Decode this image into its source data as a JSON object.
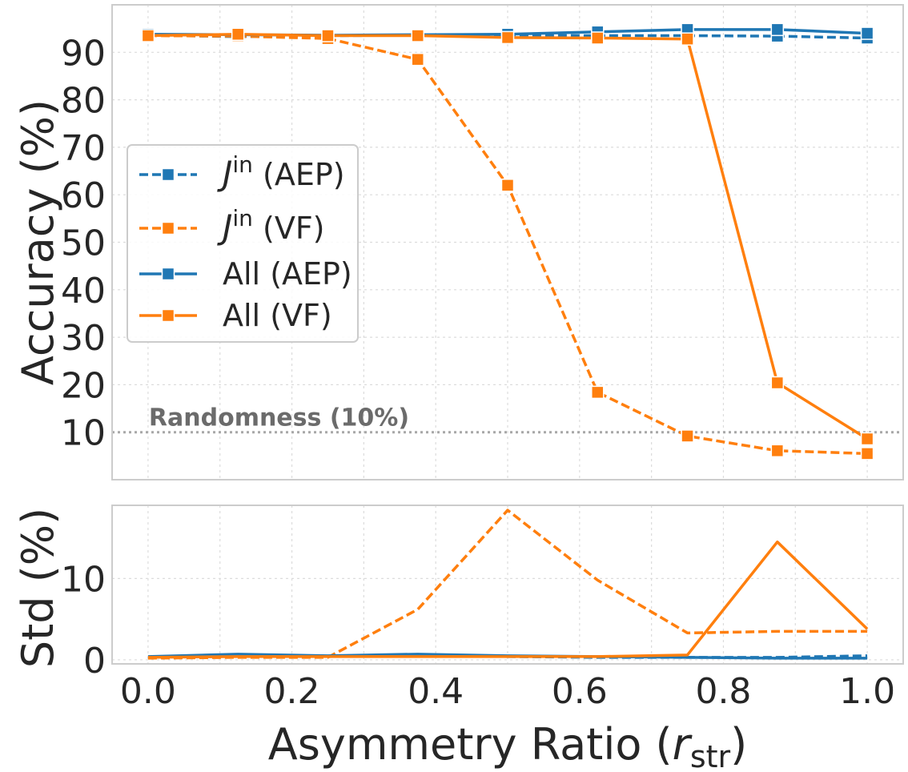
{
  "chart_data": [
    {
      "panel": "top",
      "type": "line",
      "x": [
        0.0,
        0.125,
        0.25,
        0.375,
        0.5,
        0.625,
        0.75,
        0.875,
        1.0
      ],
      "ylabel": "Accuracy (%)",
      "ylim": [
        0,
        100
      ],
      "yticks": [
        10,
        20,
        30,
        40,
        50,
        60,
        70,
        80,
        90
      ],
      "ytick_labels": [
        "10",
        "20",
        "30",
        "40",
        "50",
        "60",
        "70",
        "80",
        "90"
      ],
      "grid": true,
      "legend_placement": "center-left",
      "series": [
        {
          "name_main": "J",
          "name_sup": "in",
          "name_suffix": " (AEP)",
          "color": "#1f77b4",
          "style": "dashed",
          "marker": "square",
          "values": [
            93.6,
            93.3,
            93.5,
            93.6,
            93.6,
            93.5,
            93.5,
            93.4,
            93.0
          ]
        },
        {
          "name_main": "J",
          "name_sup": "in",
          "name_suffix": " (VF)",
          "color": "#ff7f0e",
          "style": "dashed",
          "marker": "square",
          "values": [
            93.5,
            93.4,
            92.9,
            88.5,
            62.0,
            18.4,
            9.2,
            6.1,
            5.5
          ]
        },
        {
          "name_main": "All (AEP)",
          "name_sup": "",
          "name_suffix": "",
          "color": "#1f77b4",
          "style": "solid",
          "marker": "square",
          "values": [
            93.8,
            93.7,
            93.6,
            93.7,
            93.8,
            94.3,
            94.8,
            94.8,
            94.0
          ]
        },
        {
          "name_main": "All (VF)",
          "name_sup": "",
          "name_suffix": "",
          "color": "#ff7f0e",
          "style": "solid",
          "marker": "square",
          "values": [
            93.5,
            93.8,
            93.5,
            93.5,
            93.1,
            93.0,
            92.8,
            20.4,
            8.6
          ]
        }
      ],
      "reference_line": {
        "y": 10,
        "label": "Randomness (10%)",
        "color": "#a8a8a8"
      }
    },
    {
      "panel": "bottom",
      "type": "line",
      "x": [
        0.0,
        0.125,
        0.25,
        0.375,
        0.5,
        0.625,
        0.75,
        0.875,
        1.0
      ],
      "ylabel": "Std (%)",
      "ylim": [
        -0.5,
        19
      ],
      "yticks": [
        0,
        10
      ],
      "ytick_labels": [
        "0",
        "10"
      ],
      "xlabel_main": "Asymmetry Ratio (",
      "xlabel_var": "r",
      "xlabel_sub": "str",
      "xlabel_close": ")",
      "xlim": [
        -0.05,
        1.05
      ],
      "xticks": [
        0.0,
        0.2,
        0.4,
        0.6,
        0.8,
        1.0
      ],
      "xtick_labels": [
        "0.0",
        "0.2",
        "0.4",
        "0.6",
        "0.8",
        "1.0"
      ],
      "grid": true,
      "series": [
        {
          "name": "J^in (AEP)",
          "color": "#1f77b4",
          "style": "dashed",
          "values": [
            0.3,
            0.5,
            0.4,
            0.6,
            0.4,
            0.3,
            0.3,
            0.3,
            0.5
          ]
        },
        {
          "name": "J^in (VF)",
          "color": "#ff7f0e",
          "style": "dashed",
          "values": [
            0.2,
            0.3,
            0.3,
            6.2,
            18.4,
            9.8,
            3.3,
            3.5,
            3.5
          ]
        },
        {
          "name": "All (AEP)",
          "color": "#1f77b4",
          "style": "solid",
          "values": [
            0.4,
            0.7,
            0.5,
            0.7,
            0.5,
            0.4,
            0.3,
            0.2,
            0.2
          ]
        },
        {
          "name": "All (VF)",
          "color": "#ff7f0e",
          "style": "solid",
          "values": [
            0.3,
            0.4,
            0.4,
            0.4,
            0.4,
            0.4,
            0.6,
            14.5,
            3.8
          ]
        }
      ]
    }
  ]
}
